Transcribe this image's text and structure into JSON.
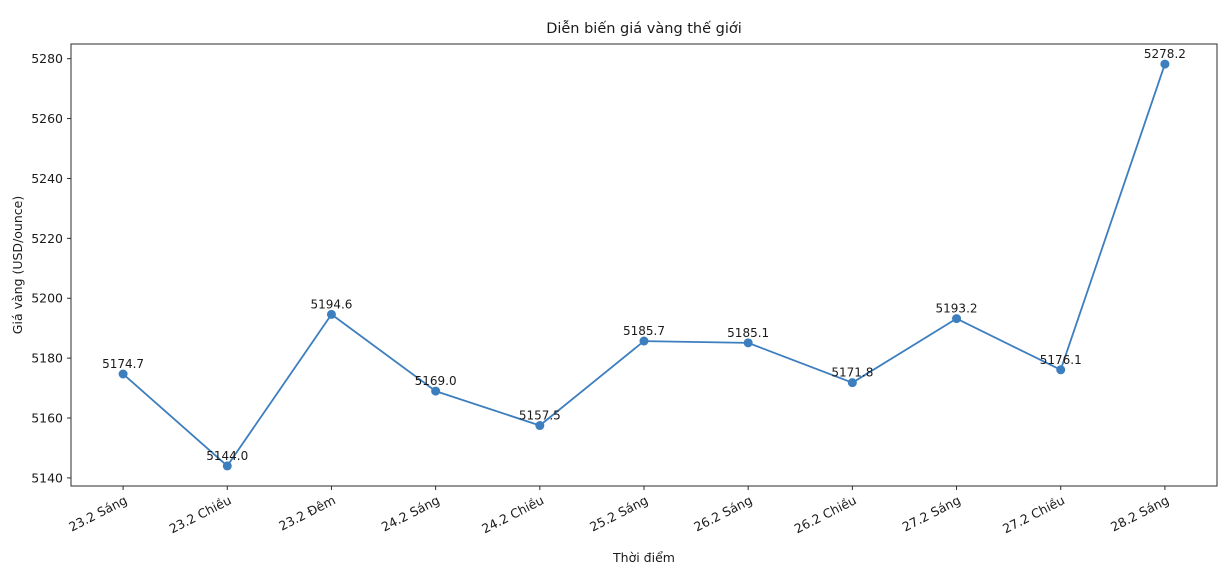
{
  "chart_data": {
    "type": "line",
    "title": "Diễn biến giá vàng thế giới",
    "xlabel": "Thời điểm",
    "ylabel": "Giá vàng (USD/ounce)",
    "categories": [
      "23.2 Sáng",
      "23.2 Chiều",
      "23.2 Đêm",
      "24.2 Sáng",
      "24.2 Chiều",
      "25.2 Sáng",
      "26.2 Sáng",
      "26.2 Chiều",
      "27.2 Sáng",
      "27.2 Chiều",
      "28.2 Sáng"
    ],
    "values": [
      5174.7,
      5144.0,
      5194.6,
      5169.0,
      5157.5,
      5185.7,
      5185.1,
      5171.8,
      5193.2,
      5176.1,
      5278.2
    ],
    "annotations": [
      "5174.7",
      "5144.0",
      "5194.6",
      "5169.0",
      "5157.5",
      "5185.7",
      "5185.1",
      "5171.8",
      "5193.2",
      "5176.1",
      "5278.2"
    ],
    "yticks": [
      5140,
      5160,
      5180,
      5200,
      5220,
      5240,
      5260,
      5280
    ],
    "ylim": [
      5137.3,
      5284.9
    ],
    "grid": false,
    "legend_position": "none",
    "line_color": "#3d7ebf",
    "marker": "circle",
    "axis_color": "#2b2b2b",
    "x_tick_rotation_deg": 27
  }
}
